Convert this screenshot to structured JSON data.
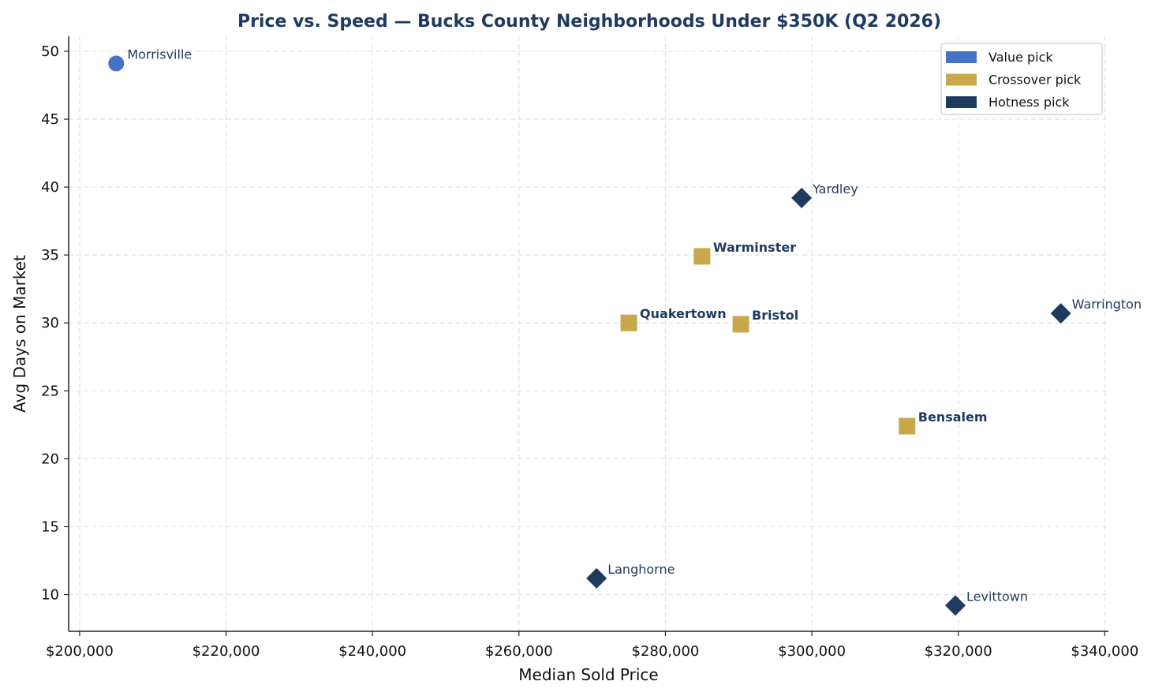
{
  "chart_data": {
    "type": "scatter",
    "title": "Price vs. Speed — Bucks County Neighborhoods Under $350K (Q2 2026)",
    "xlabel": "Median Sold Price",
    "ylabel": "Avg Days on Market",
    "xlim": [
      198500,
      340500
    ],
    "ylim": [
      7.3,
      51.1
    ],
    "x_ticks": [
      200000,
      220000,
      240000,
      260000,
      280000,
      300000,
      320000,
      340000
    ],
    "x_tick_labels": [
      "$200,000",
      "$220,000",
      "$240,000",
      "$260,000",
      "$280,000",
      "$300,000",
      "$320,000",
      "$340,000"
    ],
    "y_ticks": [
      10,
      15,
      20,
      25,
      30,
      35,
      40,
      45,
      50
    ],
    "y_tick_labels": [
      "10",
      "15",
      "20",
      "25",
      "30",
      "35",
      "40",
      "45",
      "50"
    ],
    "grid": true,
    "legend_position": "top-right",
    "series": [
      {
        "name": "Value pick",
        "color": "#4472C4",
        "marker": "circle",
        "label_weight": "normal",
        "points": [
          {
            "label": "Morrisville",
            "x": 205000,
            "y": 49.1
          }
        ]
      },
      {
        "name": "Crossover pick",
        "color": "#C9A84C",
        "marker": "square",
        "label_weight": "bold",
        "points": [
          {
            "label": "Warminster",
            "x": 285000,
            "y": 34.9
          },
          {
            "label": "Quakertown",
            "x": 275000,
            "y": 30.0
          },
          {
            "label": "Bristol",
            "x": 290300,
            "y": 29.9
          },
          {
            "label": "Bensalem",
            "x": 313000,
            "y": 22.4
          }
        ]
      },
      {
        "name": "Hotness pick",
        "color": "#1E3A5F",
        "marker": "diamond",
        "label_weight": "normal",
        "points": [
          {
            "label": "Yardley",
            "x": 298600,
            "y": 39.2
          },
          {
            "label": "Warrington",
            "x": 334000,
            "y": 30.7
          },
          {
            "label": "Langhorne",
            "x": 270600,
            "y": 11.2
          },
          {
            "label": "Levittown",
            "x": 319600,
            "y": 9.2
          }
        ]
      }
    ]
  },
  "colors": {
    "title": "#1E3A5F",
    "point_label": "#1E3A5F",
    "grid": "#e3e3e3",
    "axis": "#222222"
  }
}
